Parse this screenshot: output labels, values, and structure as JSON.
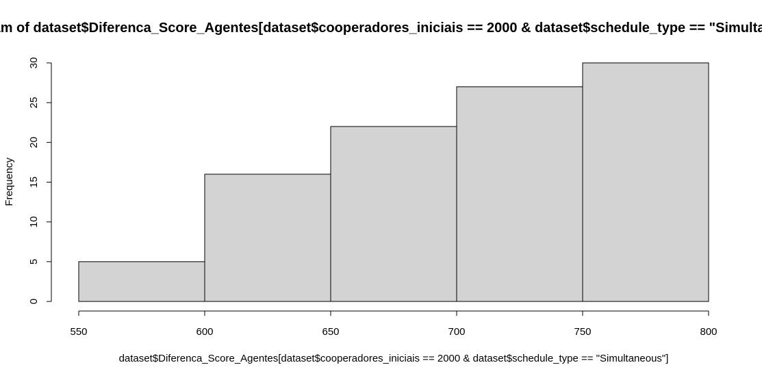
{
  "chart_data": {
    "type": "bar",
    "title": "Histogram of dataset$Diferenca_Score_Agentes[dataset$cooperadores_iniciais == 2000 & dataset$schedule_type == \"Simultaneous\"]",
    "xlabel": "dataset$Diferenca_Score_Agentes[dataset$cooperadores_iniciais == 2000 & dataset$schedule_type == \"Simultaneous\"]",
    "ylabel": "Frequency",
    "bins": [
      {
        "start": 550,
        "end": 600,
        "count": 5
      },
      {
        "start": 600,
        "end": 650,
        "count": 16
      },
      {
        "start": 650,
        "end": 700,
        "count": 22
      },
      {
        "start": 700,
        "end": 750,
        "count": 27
      },
      {
        "start": 750,
        "end": 800,
        "count": 30
      }
    ],
    "xlim": [
      550,
      800
    ],
    "ylim": [
      0,
      30
    ],
    "xticks": [
      550,
      600,
      650,
      700,
      750,
      800
    ],
    "yticks": [
      0,
      5,
      10,
      15,
      20,
      25,
      30
    ],
    "grid": false,
    "bar_fill": "#d3d3d3",
    "bar_stroke": "#000000"
  }
}
